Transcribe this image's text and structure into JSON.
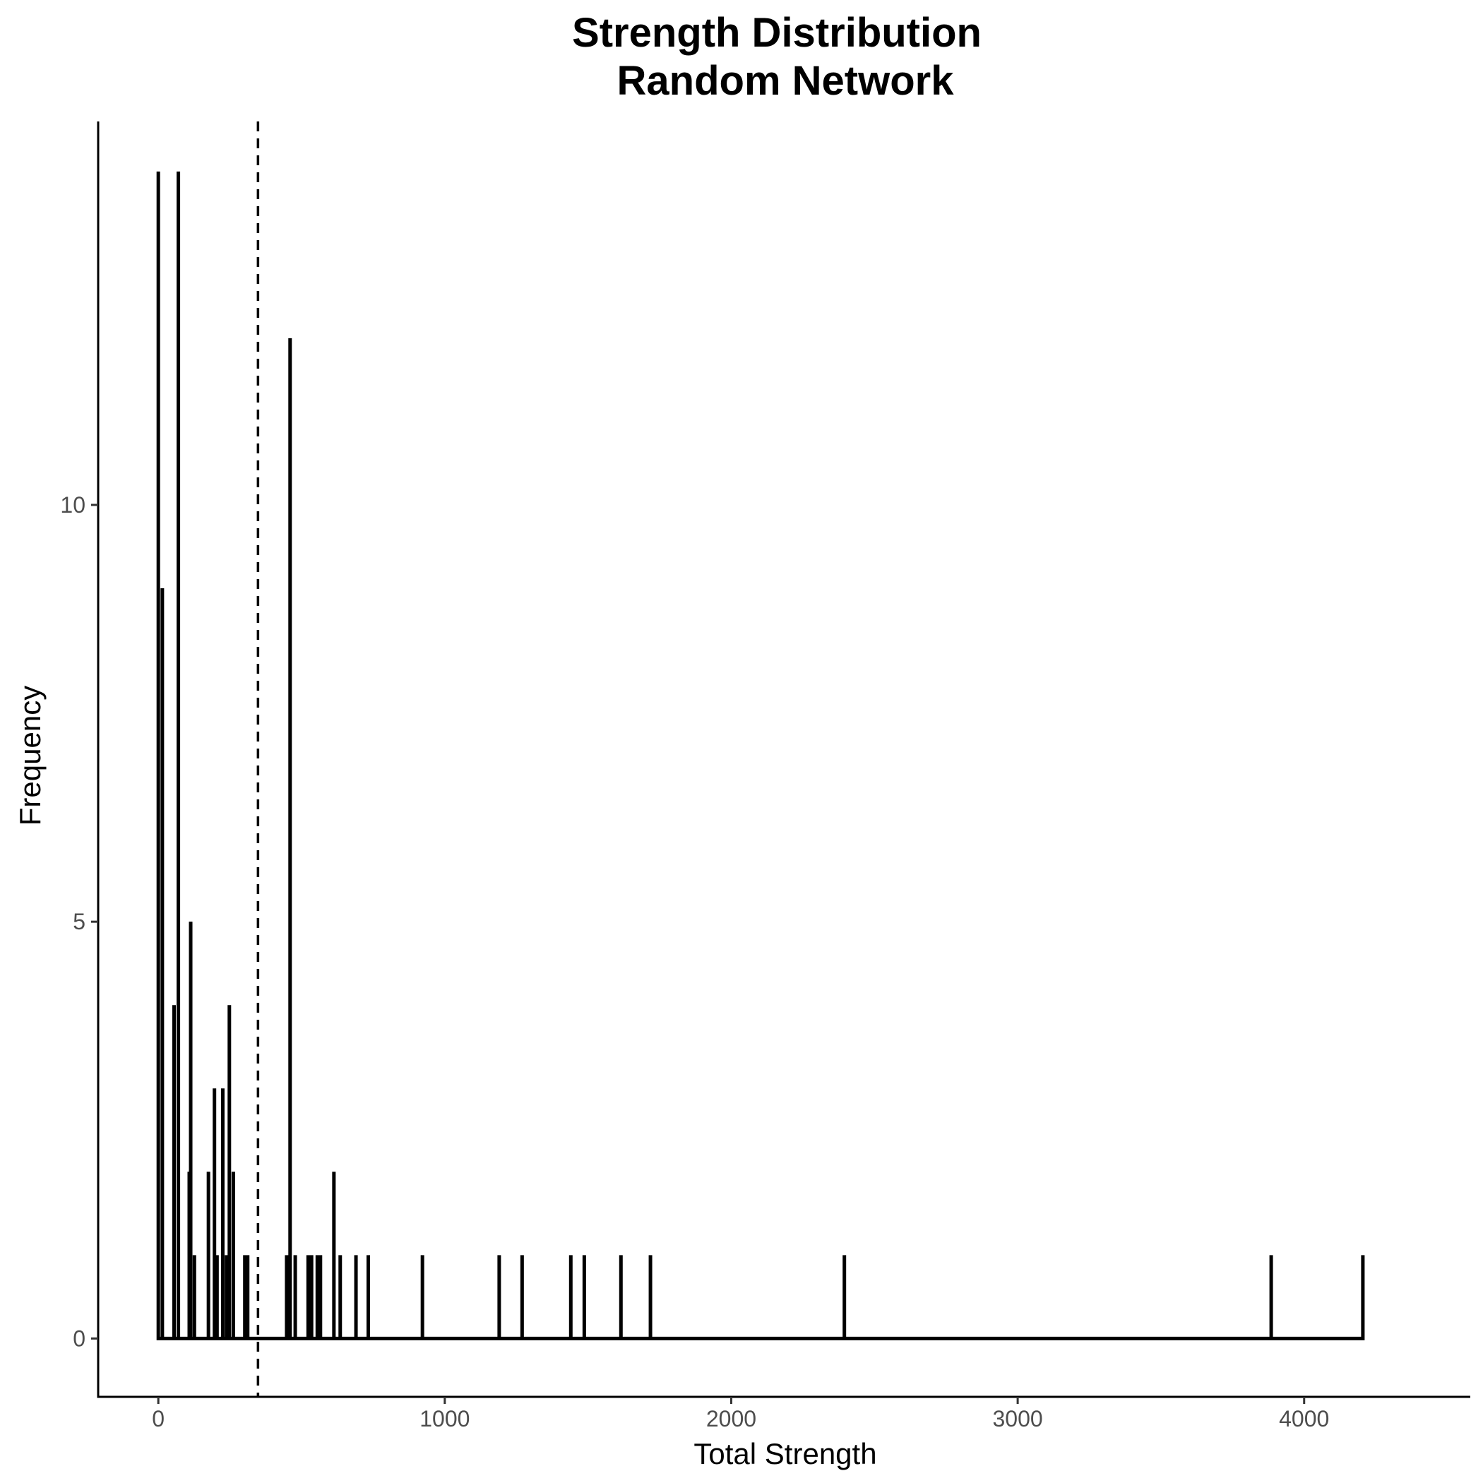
{
  "chart_data": {
    "type": "line",
    "title": [
      "Strength Distribution",
      "Random Network"
    ],
    "xlabel": "Total Strength",
    "ylabel": "Frequency",
    "xlim": [
      -210,
      4580
    ],
    "ylim": [
      -0.7,
      14.6
    ],
    "x_ticks": [
      0,
      1000,
      2000,
      3000,
      4000
    ],
    "x_tick_labels": [
      "0",
      "1000",
      "2000",
      "3000",
      "4000"
    ],
    "y_ticks": [
      0,
      5,
      10
    ],
    "y_tick_labels": [
      "0",
      "5",
      "10"
    ],
    "grid": false,
    "legend": "none",
    "colors": {
      "line": "#000000",
      "reference_line": "#000000",
      "tick_label": "#4d4d4d"
    },
    "reference_line": {
      "orientation": "vertical",
      "x": 348,
      "style": "dashed"
    },
    "series": [
      {
        "points": [
          {
            "x": 0,
            "y": 14
          },
          {
            "x": 14,
            "y": 9
          },
          {
            "x": 55,
            "y": 4
          },
          {
            "x": 70,
            "y": 14
          },
          {
            "x": 108,
            "y": 2
          },
          {
            "x": 113,
            "y": 5
          },
          {
            "x": 126,
            "y": 1
          },
          {
            "x": 175,
            "y": 2
          },
          {
            "x": 196,
            "y": 3
          },
          {
            "x": 205,
            "y": 1
          },
          {
            "x": 225,
            "y": 3
          },
          {
            "x": 238,
            "y": 1
          },
          {
            "x": 248,
            "y": 4
          },
          {
            "x": 262,
            "y": 2
          },
          {
            "x": 302,
            "y": 1
          },
          {
            "x": 312,
            "y": 1
          },
          {
            "x": 448,
            "y": 1
          },
          {
            "x": 460,
            "y": 12
          },
          {
            "x": 478,
            "y": 1
          },
          {
            "x": 523,
            "y": 1
          },
          {
            "x": 535,
            "y": 1
          },
          {
            "x": 555,
            "y": 1
          },
          {
            "x": 566,
            "y": 1
          },
          {
            "x": 613,
            "y": 2
          },
          {
            "x": 635,
            "y": 1
          },
          {
            "x": 690,
            "y": 1
          },
          {
            "x": 733,
            "y": 1
          },
          {
            "x": 922,
            "y": 1
          },
          {
            "x": 1190,
            "y": 1
          },
          {
            "x": 1270,
            "y": 1
          },
          {
            "x": 1440,
            "y": 1
          },
          {
            "x": 1487,
            "y": 1
          },
          {
            "x": 1615,
            "y": 1
          },
          {
            "x": 1718,
            "y": 1
          },
          {
            "x": 2395,
            "y": 1
          },
          {
            "x": 3885,
            "y": 1
          },
          {
            "x": 4205,
            "y": 1
          }
        ]
      }
    ]
  }
}
